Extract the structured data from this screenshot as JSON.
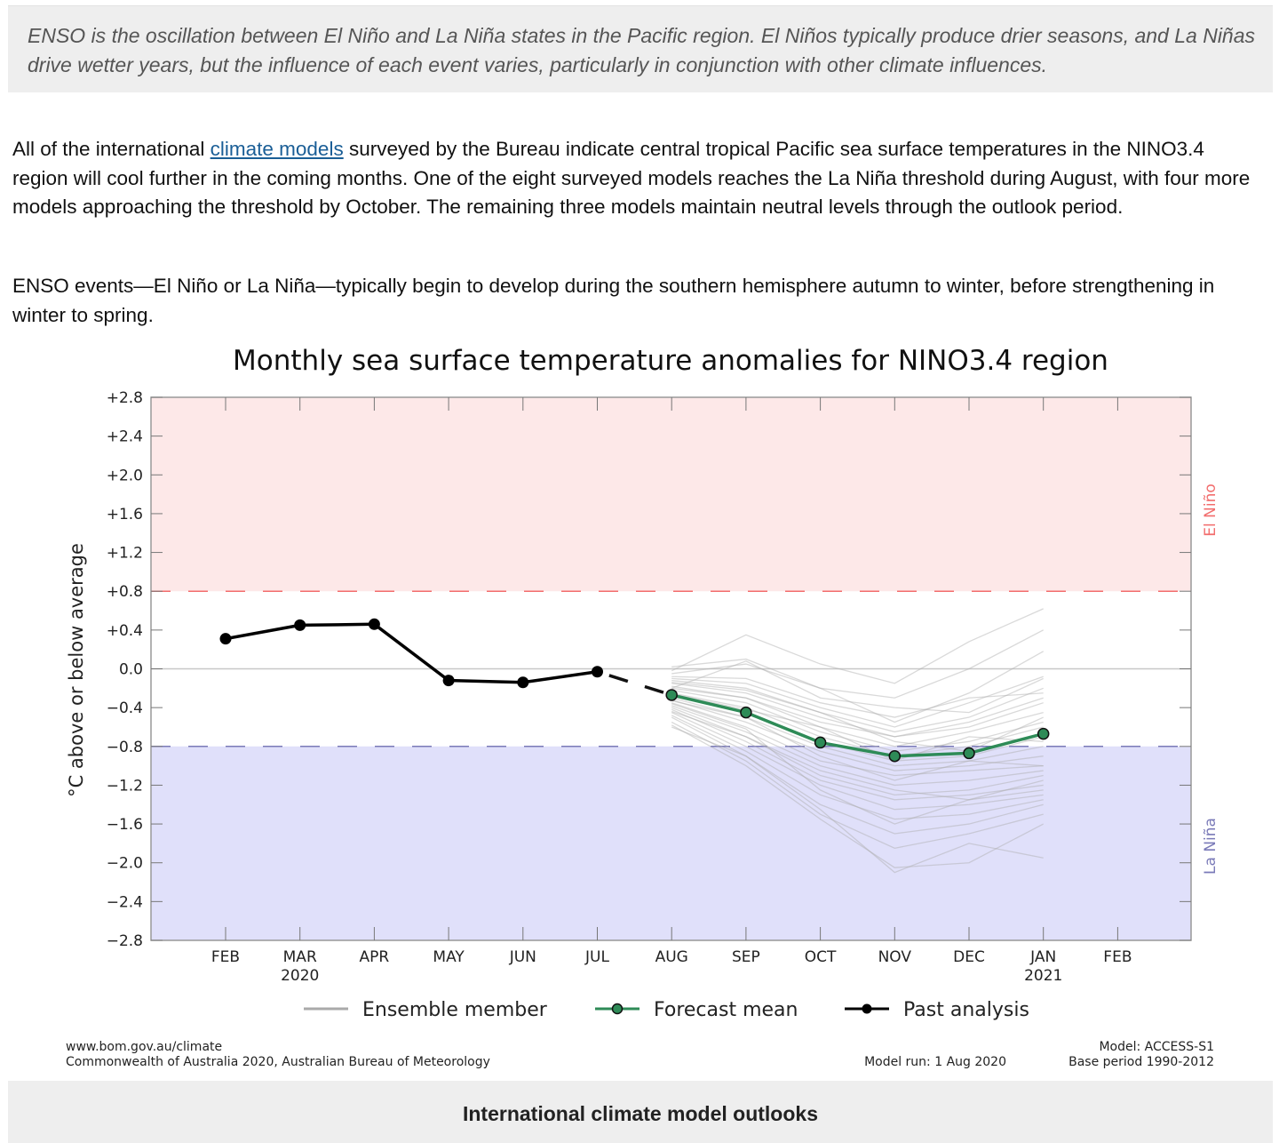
{
  "callout": {
    "text": "ENSO is the oscillation between El Niño and La Niña states in the Pacific region. El Niños typically produce drier seasons, and La Niñas drive wetter years, but the influence of each event varies, particularly in conjunction with other climate influences."
  },
  "paragraphs": {
    "p1_before": "All of the international ",
    "p1_link": "climate models",
    "p1_after": " surveyed by the Bureau indicate central tropical Pacific sea surface temperatures in the NINO3.4 region will cool further in the coming months. One of the eight surveyed models reaches the La Niña threshold during August, with four more models approaching the threshold by October. The remaining three models maintain neutral levels through the outlook period.",
    "p2": "ENSO events—El Niño or La Niña—typically begin to develop during the southern hemisphere autumn to winter, before strengthening in winter to spring."
  },
  "chart_data": {
    "type": "line",
    "title": "Monthly sea surface temperature anomalies for NINO3.4 region",
    "xlabel": "",
    "ylabel": "°C above or below average",
    "ylim": [
      -2.8,
      2.8
    ],
    "yticks": [
      2.8,
      2.4,
      2.0,
      1.6,
      1.2,
      0.8,
      0.4,
      0.0,
      -0.4,
      -0.8,
      -1.2,
      -1.6,
      -2.0,
      -2.4,
      -2.8
    ],
    "ytick_labels": [
      "+2.8",
      "+2.4",
      "+2.0",
      "+1.6",
      "+1.2",
      "+0.8",
      "+0.4",
      "0.0",
      "−0.4",
      "−0.8",
      "−1.2",
      "−1.6",
      "−2.0",
      "−2.4",
      "−2.8"
    ],
    "categories": [
      "FEB",
      "MAR",
      "APR",
      "MAY",
      "JUN",
      "JUL",
      "AUG",
      "SEP",
      "OCT",
      "NOV",
      "DEC",
      "JAN",
      "FEB"
    ],
    "category_sublabels": [
      "",
      "2020",
      "",
      "",
      "",
      "",
      "",
      "",
      "",
      "",
      "",
      "2021",
      ""
    ],
    "thresholds": {
      "el_nino": {
        "value": 0.8,
        "label": "El Niño",
        "line_color": "#f26d6d",
        "fill_color": "#fde8e8",
        "label_color": "#f26d6d"
      },
      "la_nina": {
        "value": -0.8,
        "label": "La Niña",
        "line_color": "#7a7ab8",
        "fill_color": "#e0e0fa",
        "label_color": "#7a7ab8"
      }
    },
    "series": [
      {
        "name": "Past analysis",
        "color": "#000000",
        "x_index": [
          0,
          1,
          2,
          3,
          4,
          5
        ],
        "values": [
          0.31,
          0.45,
          0.46,
          -0.12,
          -0.14,
          -0.03
        ]
      },
      {
        "name": "Forecast mean",
        "color": "#2e8b57",
        "x_index": [
          6,
          7,
          8,
          9,
          10,
          11
        ],
        "values": [
          -0.27,
          -0.45,
          -0.76,
          -0.9,
          -0.87,
          -0.67
        ]
      }
    ],
    "ensemble": {
      "name": "Ensemble member",
      "color": "#aaaaaa",
      "note": "illustrative only: synthetic members matching the visible envelope, not read from the image",
      "x_index": [
        6,
        7,
        8,
        9,
        10,
        11
      ],
      "members": [
        [
          -0.02,
          0.35,
          0.05,
          -0.15,
          0.28,
          0.62
        ],
        [
          0.02,
          0.1,
          -0.2,
          -0.3,
          0.0,
          0.4
        ],
        [
          -0.05,
          0.05,
          -0.2,
          -0.55,
          -0.25,
          0.18
        ],
        [
          -0.1,
          -0.15,
          -0.4,
          -0.6,
          -0.35,
          -0.08
        ],
        [
          -0.12,
          -0.2,
          -0.45,
          -0.65,
          -0.5,
          -0.2
        ],
        [
          -0.15,
          -0.25,
          -0.5,
          -0.7,
          -0.55,
          -0.3
        ],
        [
          -0.18,
          -0.3,
          -0.55,
          -0.7,
          -0.6,
          -0.35
        ],
        [
          -0.2,
          -0.3,
          -0.6,
          -0.8,
          -0.65,
          -0.45
        ],
        [
          -0.22,
          -0.35,
          -0.65,
          -0.85,
          -0.75,
          -0.55
        ],
        [
          -0.25,
          -0.4,
          -0.7,
          -0.9,
          -0.8,
          -0.6
        ],
        [
          -0.28,
          -0.45,
          -0.75,
          -0.95,
          -0.9,
          -0.7
        ],
        [
          -0.3,
          -0.5,
          -0.8,
          -1.0,
          -0.95,
          -0.8
        ],
        [
          -0.32,
          -0.55,
          -0.85,
          -1.05,
          -1.0,
          -0.9
        ],
        [
          -0.35,
          -0.6,
          -0.95,
          -1.1,
          -1.05,
          -1.0
        ],
        [
          -0.38,
          -0.65,
          -1.0,
          -1.2,
          -1.15,
          -1.05
        ],
        [
          -0.4,
          -0.7,
          -1.1,
          -1.3,
          -1.25,
          -1.1
        ],
        [
          -0.42,
          -0.75,
          -1.15,
          -1.35,
          -1.3,
          -1.2
        ],
        [
          -0.45,
          -0.8,
          -1.2,
          -1.45,
          -1.4,
          -1.3
        ],
        [
          -0.48,
          -0.85,
          -1.3,
          -1.55,
          -1.5,
          -1.35
        ],
        [
          -0.5,
          -0.9,
          -1.4,
          -1.7,
          -1.6,
          -1.4
        ],
        [
          -0.55,
          -0.95,
          -1.5,
          -1.85,
          -1.7,
          -1.5
        ],
        [
          -0.58,
          -1.0,
          -1.55,
          -2.05,
          -2.0,
          -1.6
        ],
        [
          -0.6,
          -0.9,
          -1.45,
          -2.1,
          -1.8,
          -1.95
        ],
        [
          -0.08,
          -0.1,
          -0.35,
          -0.5,
          -0.3,
          -0.25
        ],
        [
          -0.14,
          -0.22,
          -0.45,
          -0.75,
          -0.85,
          -0.5
        ],
        [
          -0.26,
          -0.42,
          -0.6,
          -0.95,
          -0.7,
          -0.75
        ],
        [
          -0.33,
          -0.5,
          -0.9,
          -1.15,
          -0.95,
          -1.0
        ],
        [
          -0.44,
          -0.7,
          -1.05,
          -1.25,
          -1.35,
          -1.15
        ],
        [
          -0.2,
          0.08,
          -0.3,
          -0.4,
          -0.45,
          -0.1
        ],
        [
          -0.36,
          -0.62,
          -1.25,
          -1.6,
          -1.35,
          -1.25
        ]
      ]
    },
    "legend": {
      "placement": "bottom-center",
      "entries": [
        "Ensemble member",
        "Forecast mean",
        "Past analysis"
      ]
    },
    "grid": false,
    "credits": {
      "left_line1": "www.bom.gov.au/climate",
      "left_line2": "Commonwealth of Australia 2020, Australian Bureau of Meteorology",
      "model_run": "Model run: 1 Aug 2020",
      "model": "Model: ACCESS-S1",
      "base_period": "Base period 1990-2012"
    }
  },
  "footer": {
    "heading": "International climate model outlooks"
  }
}
